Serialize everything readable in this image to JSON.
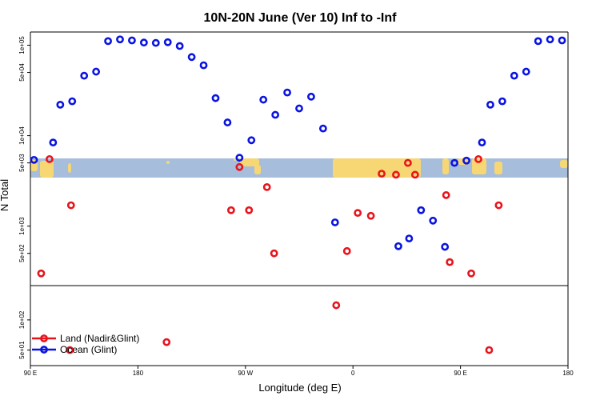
{
  "chart_data": {
    "type": "scatter",
    "title": "10N-20N June (Ver 10)   Inf to -Inf",
    "xlabel": "Longitude (deg E)",
    "ylabel": "N Total",
    "x_ticks": [
      {
        "value": 0,
        "label": "90 E"
      },
      {
        "value": 90,
        "label": "180"
      },
      {
        "value": 180,
        "label": "90 W"
      },
      {
        "value": 270,
        "label": "0"
      },
      {
        "value": 360,
        "label": "90 E"
      },
      {
        "value": 450,
        "label": "180"
      }
    ],
    "xlim": [
      0,
      450
    ],
    "upper_panel": {
      "scale": "log",
      "ylim": [
        220,
        140000
      ],
      "y_ticks": [
        {
          "value": 500,
          "label": "5e+02"
        },
        {
          "value": 1000,
          "label": "1e+03"
        },
        {
          "value": 5000,
          "label": "5e+03"
        },
        {
          "value": 10000,
          "label": "1e+04"
        },
        {
          "value": 50000,
          "label": "5e+04"
        },
        {
          "value": 100000,
          "label": "1e+05"
        }
      ]
    },
    "lower_panel": {
      "scale": "log",
      "ylim": [
        35,
        220
      ],
      "y_ticks": [
        {
          "value": 50,
          "label": "5e+01"
        },
        {
          "value": 100,
          "label": "1e+02"
        }
      ]
    },
    "map_strip": {
      "ocean_color": "#a6bddb",
      "land_color": "#f7d774"
    },
    "series": [
      {
        "name": "Land (Nadir&Glint)",
        "color": "#e8141c",
        "points": [
          {
            "x": 9,
            "y": 300
          },
          {
            "x": 16,
            "y": 5500
          },
          {
            "x": 33,
            "y": 50
          },
          {
            "x": 34,
            "y": 1700
          },
          {
            "x": 114,
            "y": 60
          },
          {
            "x": 168,
            "y": 1500
          },
          {
            "x": 175,
            "y": 4500
          },
          {
            "x": 183,
            "y": 1500
          },
          {
            "x": 198,
            "y": 2700
          },
          {
            "x": 204,
            "y": 500
          },
          {
            "x": 256,
            "y": 140
          },
          {
            "x": 265,
            "y": 530
          },
          {
            "x": 274,
            "y": 1400
          },
          {
            "x": 285,
            "y": 1300
          },
          {
            "x": 294,
            "y": 3800
          },
          {
            "x": 306,
            "y": 3700
          },
          {
            "x": 316,
            "y": 5000
          },
          {
            "x": 322,
            "y": 3700
          },
          {
            "x": 348,
            "y": 2200
          },
          {
            "x": 351,
            "y": 400
          },
          {
            "x": 369,
            "y": 300
          },
          {
            "x": 375,
            "y": 5500
          },
          {
            "x": 384,
            "y": 50
          },
          {
            "x": 392,
            "y": 1700
          }
        ]
      },
      {
        "name": "Ocean (Glint)",
        "color": "#0a14e0",
        "points": [
          {
            "x": 3,
            "y": 5400
          },
          {
            "x": 19,
            "y": 8400
          },
          {
            "x": 25,
            "y": 22000
          },
          {
            "x": 35,
            "y": 24000
          },
          {
            "x": 45,
            "y": 46000
          },
          {
            "x": 55,
            "y": 51000
          },
          {
            "x": 65,
            "y": 111000
          },
          {
            "x": 75,
            "y": 116000
          },
          {
            "x": 85,
            "y": 113000
          },
          {
            "x": 95,
            "y": 107000
          },
          {
            "x": 105,
            "y": 106000
          },
          {
            "x": 115,
            "y": 108000
          },
          {
            "x": 125,
            "y": 98000
          },
          {
            "x": 135,
            "y": 74000
          },
          {
            "x": 145,
            "y": 60000
          },
          {
            "x": 155,
            "y": 26000
          },
          {
            "x": 165,
            "y": 14000
          },
          {
            "x": 175,
            "y": 5700
          },
          {
            "x": 185,
            "y": 8900
          },
          {
            "x": 195,
            "y": 25000
          },
          {
            "x": 205,
            "y": 17000
          },
          {
            "x": 215,
            "y": 30000
          },
          {
            "x": 225,
            "y": 20000
          },
          {
            "x": 235,
            "y": 27000
          },
          {
            "x": 245,
            "y": 12000
          },
          {
            "x": 255,
            "y": 1100
          },
          {
            "x": 308,
            "y": 600
          },
          {
            "x": 317,
            "y": 730
          },
          {
            "x": 327,
            "y": 1500
          },
          {
            "x": 337,
            "y": 1150
          },
          {
            "x": 347,
            "y": 590
          },
          {
            "x": 355,
            "y": 5000
          },
          {
            "x": 365,
            "y": 5300
          },
          {
            "x": 378,
            "y": 8400
          },
          {
            "x": 385,
            "y": 22000
          },
          {
            "x": 395,
            "y": 24000
          },
          {
            "x": 405,
            "y": 46000
          },
          {
            "x": 415,
            "y": 51000
          },
          {
            "x": 425,
            "y": 111000
          },
          {
            "x": 435,
            "y": 116000
          },
          {
            "x": 445,
            "y": 113000
          }
        ]
      }
    ],
    "legend": {
      "position": "bottom-left",
      "entries": [
        {
          "label": "Land (Nadir&Glint)",
          "color": "#e8141c"
        },
        {
          "label": "Ocean (Glint)",
          "color": "#0a14e0"
        }
      ]
    }
  }
}
